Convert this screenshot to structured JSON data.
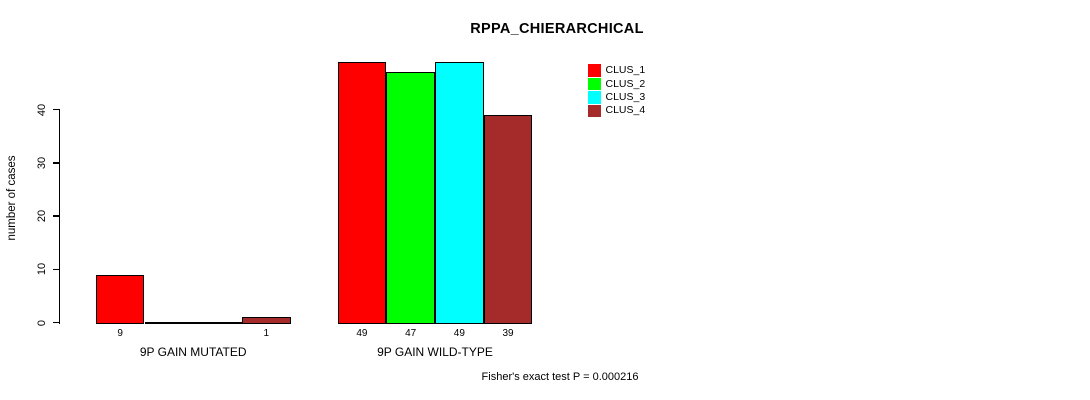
{
  "title": "RPPA_CHIERARCHICAL",
  "ylabel": "number of cases",
  "footer": "Fisher's exact test P = 0.000216",
  "legend": {
    "items": [
      {
        "label": "CLUS_1",
        "color": "#FF0000"
      },
      {
        "label": "CLUS_2",
        "color": "#00FF00"
      },
      {
        "label": "CLUS_3",
        "color": "#00FFFF"
      },
      {
        "label": "CLUS_4",
        "color": "#A52A2A"
      }
    ]
  },
  "chart_data": {
    "type": "bar",
    "title": "RPPA_CHIERARCHICAL",
    "xlabel": "",
    "ylabel": "number of cases",
    "ylim": [
      0,
      40
    ],
    "yticks": [
      0,
      10,
      20,
      30,
      40
    ],
    "categories": [
      "9P GAIN MUTATED",
      "9P GAIN WILD-TYPE"
    ],
    "series": [
      {
        "name": "CLUS_1",
        "color": "#FF0000",
        "values": [
          9,
          49
        ]
      },
      {
        "name": "CLUS_2",
        "color": "#00FF00",
        "values": [
          0,
          47
        ]
      },
      {
        "name": "CLUS_3",
        "color": "#00FFFF",
        "values": [
          0,
          49
        ]
      },
      {
        "name": "CLUS_4",
        "color": "#A52A2A",
        "values": [
          1,
          39
        ]
      }
    ],
    "bar_labels": [
      [
        "9",
        "",
        "",
        "1"
      ],
      [
        "49",
        "47",
        "49",
        "39"
      ]
    ],
    "legend_position": "top-right",
    "grid": false,
    "annotation": "Fisher's exact test P = 0.000216"
  }
}
